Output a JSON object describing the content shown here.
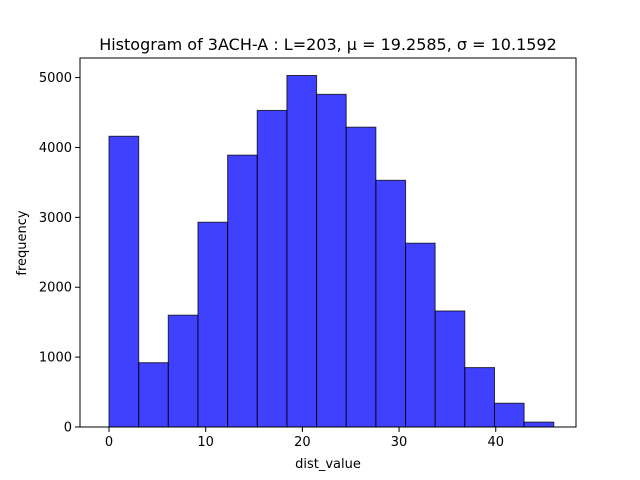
{
  "chart_data": {
    "type": "bar",
    "title": "Histogram of 3ACH-A : L=203, μ = 19.2585, σ = 10.1592",
    "xlabel": "dist_value",
    "ylabel": "frequency",
    "xlim": [
      -3.0,
      48.3
    ],
    "ylim": [
      0,
      5280
    ],
    "xticks": [
      0,
      10,
      20,
      30,
      40
    ],
    "yticks": [
      0,
      1000,
      2000,
      3000,
      4000,
      5000
    ],
    "bin_edges": [
      0,
      3.07,
      6.13,
      9.2,
      12.27,
      15.33,
      18.4,
      21.47,
      24.53,
      27.6,
      30.67,
      33.73,
      36.8,
      39.87,
      42.93,
      46.0
    ],
    "values": [
      4160,
      920,
      1600,
      2930,
      3890,
      4530,
      5030,
      4760,
      4290,
      3530,
      2630,
      1660,
      850,
      340,
      70
    ],
    "bar_color": "#0000ff",
    "bar_alpha": 0.75,
    "edge_color": "#000000",
    "grid": false,
    "legend": "none"
  }
}
